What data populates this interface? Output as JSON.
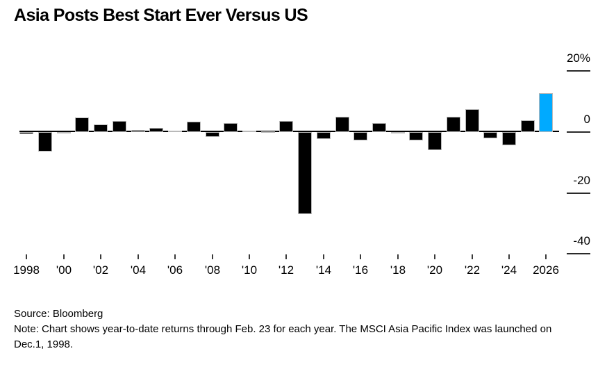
{
  "title": "Asia Posts Best Start Ever Versus US",
  "footer": {
    "source": "Source: Bloomberg",
    "note": "Note: Chart shows year-to-date returns through Feb. 23 for each year. The MSCI Asia Pacific Index was launched on Dec.1, 1998."
  },
  "colors": {
    "bar": "#000000",
    "highlight": "#00aaff",
    "axis": "#000000",
    "tick": "#333333",
    "background": "#ffffff"
  },
  "chart_data": {
    "type": "bar",
    "title": "Asia Posts Best Start Ever Versus US",
    "xlabel": "",
    "ylabel": "",
    "unit": "%",
    "grid": false,
    "legend": false,
    "yaxis_side": "right",
    "ylim": [
      -45,
      22
    ],
    "x": [
      1998,
      1999,
      2000,
      2001,
      2002,
      2003,
      2004,
      2005,
      2006,
      2007,
      2008,
      2009,
      2010,
      2011,
      2012,
      2013,
      2014,
      2015,
      2016,
      2017,
      2018,
      2019,
      2020,
      2021,
      2022,
      2023,
      2024,
      2025,
      2026
    ],
    "values": [
      -0.6,
      -6.4,
      -0.4,
      4.8,
      2.5,
      3.7,
      0.7,
      1.4,
      0.4,
      3.4,
      -1.6,
      3.0,
      0.5,
      0.3,
      3.7,
      -27.0,
      -2.3,
      5.0,
      -2.7,
      3.0,
      -0.4,
      -2.7,
      -6.0,
      5.1,
      7.6,
      -2.0,
      -4.4,
      3.9,
      12.7
    ],
    "highlight_year": 2026,
    "yticks": [
      {
        "label": "20%",
        "value": 20
      },
      {
        "label": "0",
        "value": 0
      },
      {
        "label": "-20",
        "value": -20
      },
      {
        "label": "-40",
        "value": -40
      }
    ],
    "xticks": [
      {
        "label": "1998",
        "year": 1998
      },
      {
        "label": "'00",
        "year": 2000
      },
      {
        "label": "'02",
        "year": 2002
      },
      {
        "label": "'04",
        "year": 2004
      },
      {
        "label": "'06",
        "year": 2006
      },
      {
        "label": "'08",
        "year": 2008
      },
      {
        "label": "'10",
        "year": 2010
      },
      {
        "label": "'12",
        "year": 2012
      },
      {
        "label": "'14",
        "year": 2014
      },
      {
        "label": "'16",
        "year": 2016
      },
      {
        "label": "'18",
        "year": 2018
      },
      {
        "label": "'20",
        "year": 2020
      },
      {
        "label": "'22",
        "year": 2022
      },
      {
        "label": "'24",
        "year": 2024
      },
      {
        "label": "2026",
        "year": 2026
      }
    ]
  }
}
